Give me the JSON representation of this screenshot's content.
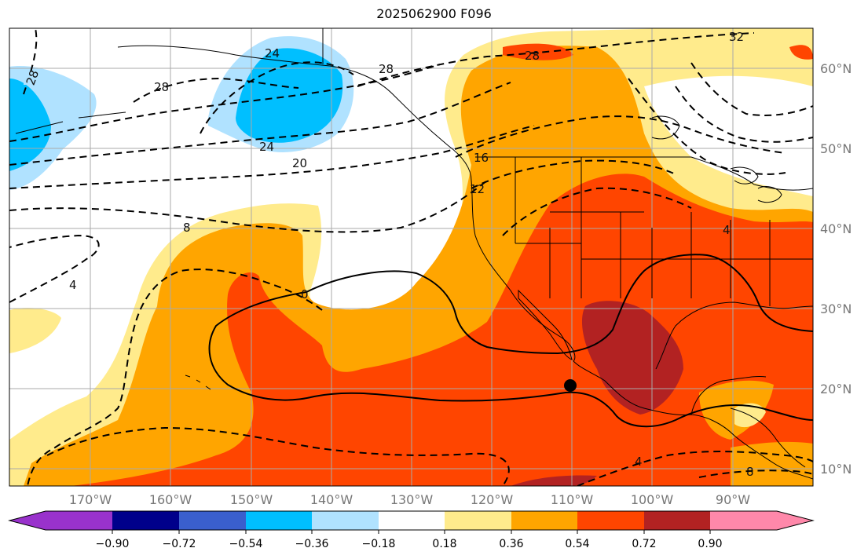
{
  "title": "2025062900 F096",
  "lat_labels": [
    "60°N",
    "50°N",
    "40°N",
    "30°N",
    "20°N",
    "10°N"
  ],
  "lon_labels": [
    "170°W",
    "160°W",
    "150°W",
    "140°W",
    "130°W",
    "120°W",
    "110°W",
    "100°W",
    "90°W"
  ],
  "colorbar": {
    "ticks": [
      "−0.90",
      "−0.72",
      "−0.54",
      "−0.36",
      "−0.18",
      "0.18",
      "0.36",
      "0.54",
      "0.72",
      "0.90"
    ],
    "colors": [
      "#9932cc",
      "#00008b",
      "#3a5fcd",
      "#00bfff",
      "#b0e2ff",
      "#ffffff",
      "#ffeb8c",
      "#ffa500",
      "#ff4500",
      "#b22222",
      "#ff88aa"
    ]
  },
  "contour_labels": [
    "28",
    "24",
    "28",
    "24",
    "28",
    "20",
    "16",
    "12",
    "8",
    "4",
    "0",
    "4",
    "4",
    "8",
    "32",
    "28"
  ],
  "marker": "black-dot"
}
